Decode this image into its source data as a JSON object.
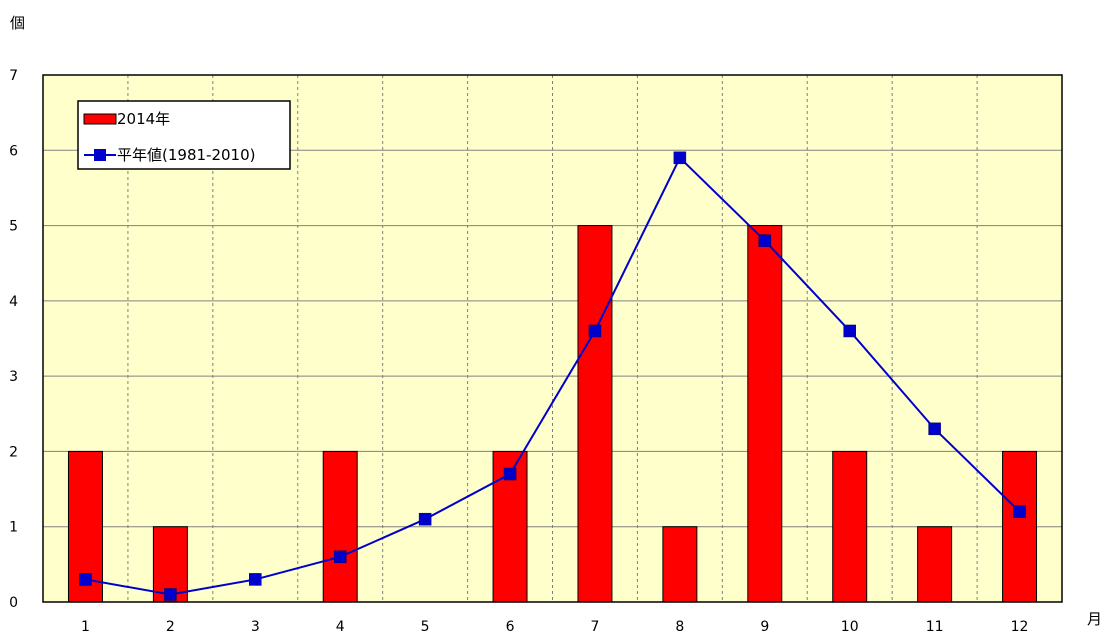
{
  "chart_data": {
    "type": "bar",
    "y_unit": "個",
    "x_unit": "月",
    "categories": [
      "1",
      "2",
      "3",
      "4",
      "5",
      "6",
      "7",
      "8",
      "9",
      "10",
      "11",
      "12"
    ],
    "ylim": [
      0,
      7
    ],
    "yticks": [
      "0",
      "1",
      "2",
      "3",
      "4",
      "5",
      "6",
      "7"
    ],
    "grid": true,
    "legend_position": "top-left",
    "series": [
      {
        "name": "2014年",
        "kind": "bar",
        "color": "#ff0000",
        "values": [
          2,
          1,
          0,
          2,
          0,
          2,
          5,
          1,
          5,
          2,
          1,
          2
        ]
      },
      {
        "name": "平年値(1981-2010)",
        "kind": "line",
        "color": "#0000cc",
        "values": [
          0.3,
          0.1,
          0.3,
          0.6,
          1.1,
          1.7,
          3.6,
          5.9,
          4.8,
          3.6,
          2.3,
          1.2
        ]
      }
    ],
    "colors": {
      "plot_background": "#ffffcc",
      "grid": "#808080"
    }
  }
}
